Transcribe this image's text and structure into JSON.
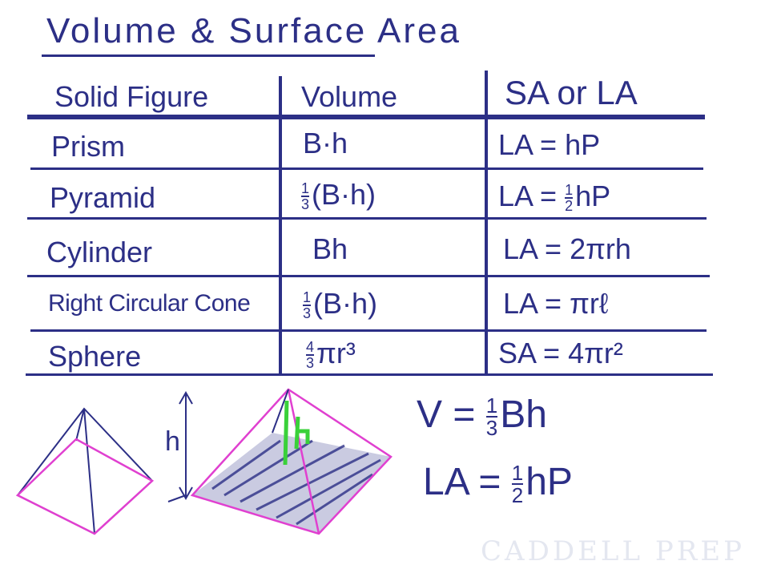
{
  "title": "Volume & Surface Area",
  "watermark": "CADDELL PREP",
  "table": {
    "headers": [
      "Solid Figure",
      "Volume",
      "SA or LA"
    ],
    "rows": [
      {
        "figure": "Prism",
        "volume": "B·h",
        "area": "LA = hP"
      },
      {
        "figure": "Pyramid",
        "volume_frac": [
          "1",
          "3"
        ],
        "volume": "(B·h)",
        "area_prefix": "LA = ",
        "area_frac": [
          "1",
          "2"
        ],
        "area": "hP"
      },
      {
        "figure": "Cylinder",
        "volume": "Bh",
        "area": "LA = 2πrh"
      },
      {
        "figure": "Right Circular Cone",
        "volume_frac": [
          "1",
          "3"
        ],
        "volume": "(B·h)",
        "area": "LA = πrℓ"
      },
      {
        "figure": "Sphere",
        "volume_frac": [
          "4",
          "3"
        ],
        "volume": "πr³",
        "area": "SA = 4πr²"
      }
    ]
  },
  "notes": {
    "volume_prefix": "V = ",
    "volume_frac": [
      "1",
      "3"
    ],
    "volume_rest": "Bh",
    "la_prefix": "LA = ",
    "la_frac": [
      "1",
      "2"
    ],
    "la_rest": "hP",
    "height_label": "h",
    "green_label": "h"
  },
  "colors": {
    "ink": "#2c2f86",
    "magenta": "#e040d0",
    "green": "#3ad13a"
  }
}
